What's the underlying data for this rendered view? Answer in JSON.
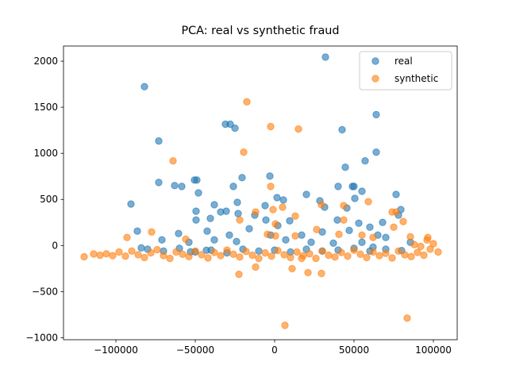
{
  "chart_data": {
    "type": "scatter",
    "title": "PCA: real vs synthetic fraud",
    "xlim": [
      -133000,
      115000
    ],
    "ylim": [
      -1022,
      2164
    ],
    "xticks": [
      {
        "value": -100000,
        "label": "−100000"
      },
      {
        "value": -50000,
        "label": "−50000"
      },
      0,
      50000,
      100000
    ],
    "yticks": [
      {
        "value": -1000,
        "label": "−1000"
      },
      {
        "value": -500,
        "label": "−500"
      },
      0,
      500,
      1000,
      1500,
      2000
    ],
    "legend": "upper right",
    "series": [
      {
        "name": "real",
        "color": "#1f77b4",
        "x": [
          32000,
          -82000,
          -73000,
          -31000,
          -28000,
          -25000,
          42500,
          64000,
          64000,
          44500,
          57000,
          49000,
          50000,
          40000,
          55000,
          50500,
          76500,
          20000,
          -3000,
          -20500,
          -50500,
          -49000,
          -63000,
          -58500,
          -73000,
          -90500,
          -48000,
          -26000,
          -23500,
          -38000,
          -6000,
          1500,
          5500,
          28500,
          45500,
          31500,
          -49500,
          -34000,
          -30500,
          -23000,
          -49500,
          -40500,
          -12500,
          -5500,
          2000,
          9500,
          39500,
          78000,
          79500,
          68000,
          60000,
          53000,
          -86500,
          -60500,
          -42500,
          -28500,
          -16000,
          -2500,
          17000,
          30000,
          47000,
          65000,
          70000,
          -84000,
          -71000,
          -54000,
          -38000,
          -24000,
          7000,
          23000,
          37000,
          55000,
          85500,
          -53000,
          -43000,
          62000,
          -80000,
          -70000,
          -60000,
          -50000,
          -40000,
          -30000,
          -20000,
          -10000,
          0,
          10000,
          20000,
          30000,
          40000,
          50000,
          60000,
          70000,
          80000
        ],
        "values": [
          2044,
          1723,
          1134,
          1316,
          1316,
          1273,
          1256,
          1420,
          1013,
          849,
          918,
          641,
          641,
          641,
          589,
          511,
          554,
          554,
          753,
          736,
          710,
          710,
          650,
          641,
          684,
          450,
          571,
          641,
          468,
          442,
          433,
          520,
          494,
          485,
          407,
          416,
          372,
          364,
          372,
          346,
          277,
          294,
          329,
          277,
          216,
          268,
          277,
          329,
          390,
          251,
          199,
          242,
          156,
          130,
          156,
          113,
          182,
          113,
          113,
          147,
          164,
          113,
          87,
          -26,
          61,
          35,
          61,
          43,
          61,
          35,
          26,
          35,
          35,
          -69,
          -52,
          -17,
          -40,
          -60,
          -30,
          -70,
          -50,
          -80,
          -40,
          -60,
          -50,
          -70,
          -40,
          -60,
          -50,
          -30,
          -60,
          -40,
          -55
        ]
      },
      {
        "name": "synthetic",
        "color": "#ff7f0e",
        "x": [
          -17500,
          -2500,
          15000,
          -19500,
          -64000,
          -2500,
          59000,
          29500,
          43500,
          5000,
          -1000,
          13000,
          -12000,
          -22000,
          500,
          43500,
          74000,
          76500,
          75000,
          81000,
          85500,
          -93000,
          -77500,
          -56000,
          -4500,
          500,
          26500,
          13000,
          40500,
          55000,
          62000,
          96500,
          -22500,
          -12000,
          11000,
          21000,
          29500,
          6500,
          83500,
          17000,
          -120000,
          -114000,
          -110000,
          -106000,
          -102000,
          -98000,
          -94000,
          -90000,
          -86000,
          -82000,
          -78000,
          -74000,
          -70000,
          -66000,
          -62000,
          -58000,
          -54000,
          -50000,
          -46000,
          -42000,
          -38000,
          -34000,
          -30000,
          -26000,
          -22000,
          -18000,
          -14000,
          -10000,
          -6000,
          -2000,
          2000,
          6000,
          10000,
          14000,
          18000,
          22000,
          26000,
          30000,
          34000,
          38000,
          42000,
          46000,
          50000,
          54000,
          58000,
          62000,
          66000,
          70000,
          74000,
          78000,
          82000,
          86000,
          90000,
          94000,
          98000,
          100000,
          103000,
          96000,
          92000,
          88000
        ],
        "values": [
          1559,
          1290,
          1264,
          1013,
          918,
          641,
          476,
          442,
          433,
          416,
          390,
          320,
          364,
          277,
          234,
          277,
          364,
          364,
          199,
          260,
          95,
          87,
          147,
          69,
          121,
          104,
          173,
          104,
          121,
          113,
          87,
          87,
          -312,
          -234,
          -251,
          -294,
          -303,
          -866,
          -788,
          -139,
          -122,
          -92,
          -105,
          -90,
          -110,
          -70,
          -115,
          -60,
          -100,
          -130,
          -80,
          -45,
          -110,
          -140,
          -70,
          -95,
          -120,
          -60,
          -100,
          -135,
          -75,
          -110,
          -50,
          -95,
          -125,
          -65,
          -105,
          -140,
          -80,
          -115,
          -55,
          -100,
          -130,
          -70,
          -110,
          -90,
          -140,
          -60,
          -105,
          -125,
          -75,
          -115,
          -50,
          -95,
          -130,
          -70,
          -110,
          -85,
          -135,
          -60,
          -100,
          -120,
          -75,
          -105,
          -40,
          20,
          -70,
          60,
          -10,
          10
        ]
      }
    ]
  }
}
